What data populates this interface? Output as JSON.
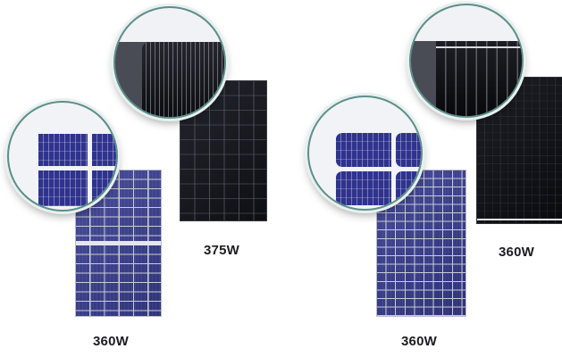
{
  "products": [
    {
      "wattage": "360W"
    },
    {
      "wattage": "375W"
    },
    {
      "wattage": "360W"
    },
    {
      "wattage": "360W"
    }
  ]
}
